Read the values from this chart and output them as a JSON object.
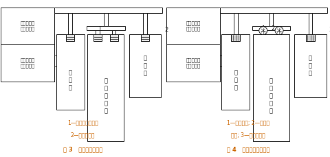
{
  "fig3_title": "图 3   循环风处理简图",
  "fig4_title": "图 4   循环风机加压简图",
  "fig3_legend1": "1—风机过滤单元；",
  "fig3_legend2": "2—高效送风口",
  "fig4_legend1": "1—循环风机; 2—高效过",
  "fig4_legend2": "滤器; 3—高效送风口",
  "label_send": "接组合式空\n调器送风管",
  "label_return": "接组合式空\n调器回风管",
  "label_wan": "万\n级\n区",
  "label_local": "局\n部\n百\n级\n区",
  "title_color": "#cc6600",
  "legend_color": "#cc6600",
  "dc": "#222222",
  "bg": "#ffffff"
}
